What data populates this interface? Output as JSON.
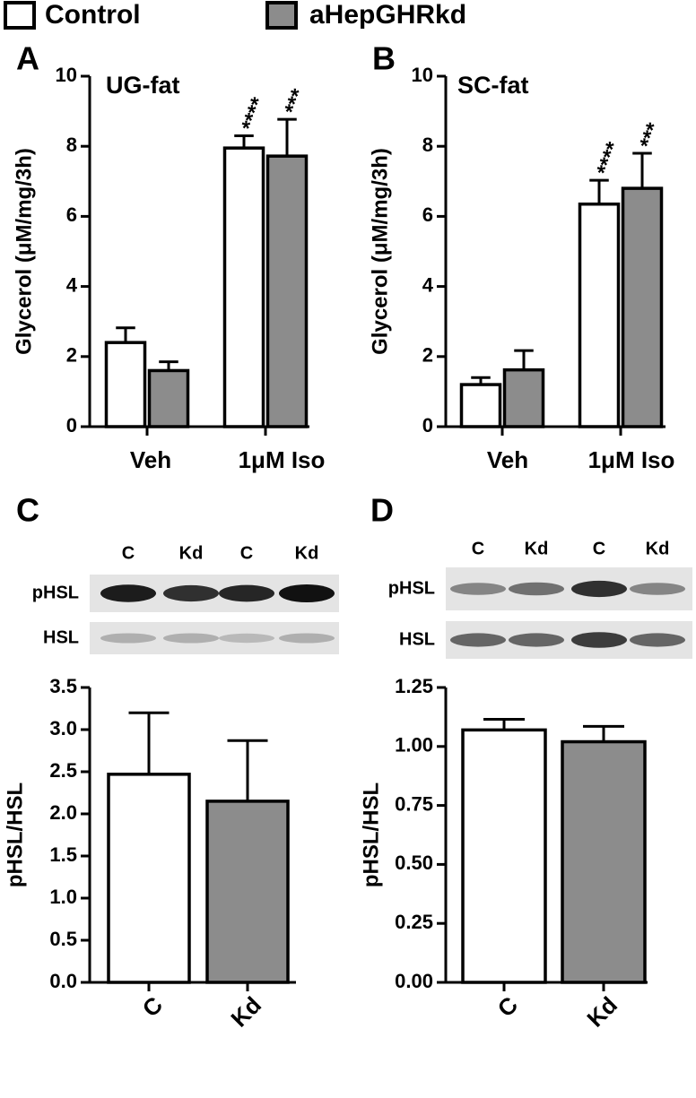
{
  "legend": [
    "Control",
    "aHepGHRkd"
  ],
  "chart_data": [
    {
      "type": "grouped-bar",
      "panel": "A",
      "title": "UG-fat",
      "ylabel": "Glycerol (μM/mg/3h)",
      "categories": [
        "Veh",
        "1μM Iso"
      ],
      "series": [
        {
          "name": "Control",
          "color": "#ffffff",
          "values": [
            2.4,
            7.95
          ],
          "errors": [
            0.42,
            0.35
          ],
          "significance": [
            null,
            "****"
          ]
        },
        {
          "name": "aHepGHRkd",
          "color": "#8c8c8c",
          "values": [
            1.6,
            7.72
          ],
          "errors": [
            0.25,
            1.05
          ],
          "significance": [
            null,
            "***"
          ]
        }
      ],
      "ylim": [
        0,
        10
      ],
      "yticks": [
        0,
        2,
        4,
        6,
        8,
        10
      ]
    },
    {
      "type": "grouped-bar",
      "panel": "B",
      "title": "SC-fat",
      "ylabel": "Glycerol (μM/mg/3h)",
      "categories": [
        "Veh",
        "1μM Iso"
      ],
      "series": [
        {
          "name": "Control",
          "color": "#ffffff",
          "values": [
            1.2,
            6.35
          ],
          "errors": [
            0.2,
            0.68
          ],
          "significance": [
            null,
            "****"
          ]
        },
        {
          "name": "aHepGHRkd",
          "color": "#8c8c8c",
          "values": [
            1.62,
            6.8
          ],
          "errors": [
            0.55,
            1.0
          ],
          "significance": [
            null,
            "***"
          ]
        }
      ],
      "ylim": [
        0,
        10
      ],
      "yticks": [
        0,
        2,
        4,
        6,
        8,
        10
      ]
    },
    {
      "type": "bar",
      "panel": "C",
      "ylabel": "pHSL/HSL",
      "blot": {
        "lanes": [
          "C",
          "Kd",
          "C",
          "Kd"
        ],
        "rows": [
          "pHSL",
          "HSL"
        ]
      },
      "categories": [
        "C",
        "Kd"
      ],
      "values": [
        2.47,
        2.15
      ],
      "errors": [
        0.73,
        0.72
      ],
      "colors": [
        "#ffffff",
        "#8c8c8c"
      ],
      "ylim": [
        0,
        3.5
      ],
      "yticks": [
        {
          "value": 0,
          "label": "0.0"
        },
        0.5,
        {
          "value": 1,
          "label": "1.0"
        },
        1.5,
        {
          "value": 2,
          "label": "2.0"
        },
        2.5,
        {
          "value": 3,
          "label": "3.0"
        },
        3.5
      ]
    },
    {
      "type": "bar",
      "panel": "D",
      "ylabel": "pHSL/HSL",
      "blot": {
        "lanes": [
          "C",
          "Kd",
          "C",
          "Kd"
        ],
        "rows": [
          "pHSL",
          "HSL"
        ]
      },
      "categories": [
        "C",
        "Kd"
      ],
      "values": [
        1.07,
        1.02
      ],
      "errors": [
        0.045,
        0.065
      ],
      "colors": [
        "#ffffff",
        "#8c8c8c"
      ],
      "ylim": [
        0,
        1.25
      ],
      "yticks": [
        {
          "value": 0,
          "label": "0.00"
        },
        0.25,
        {
          "value": 0.5,
          "label": "0.50"
        },
        0.75,
        {
          "value": 1,
          "label": "1.00"
        },
        1.25
      ]
    }
  ]
}
